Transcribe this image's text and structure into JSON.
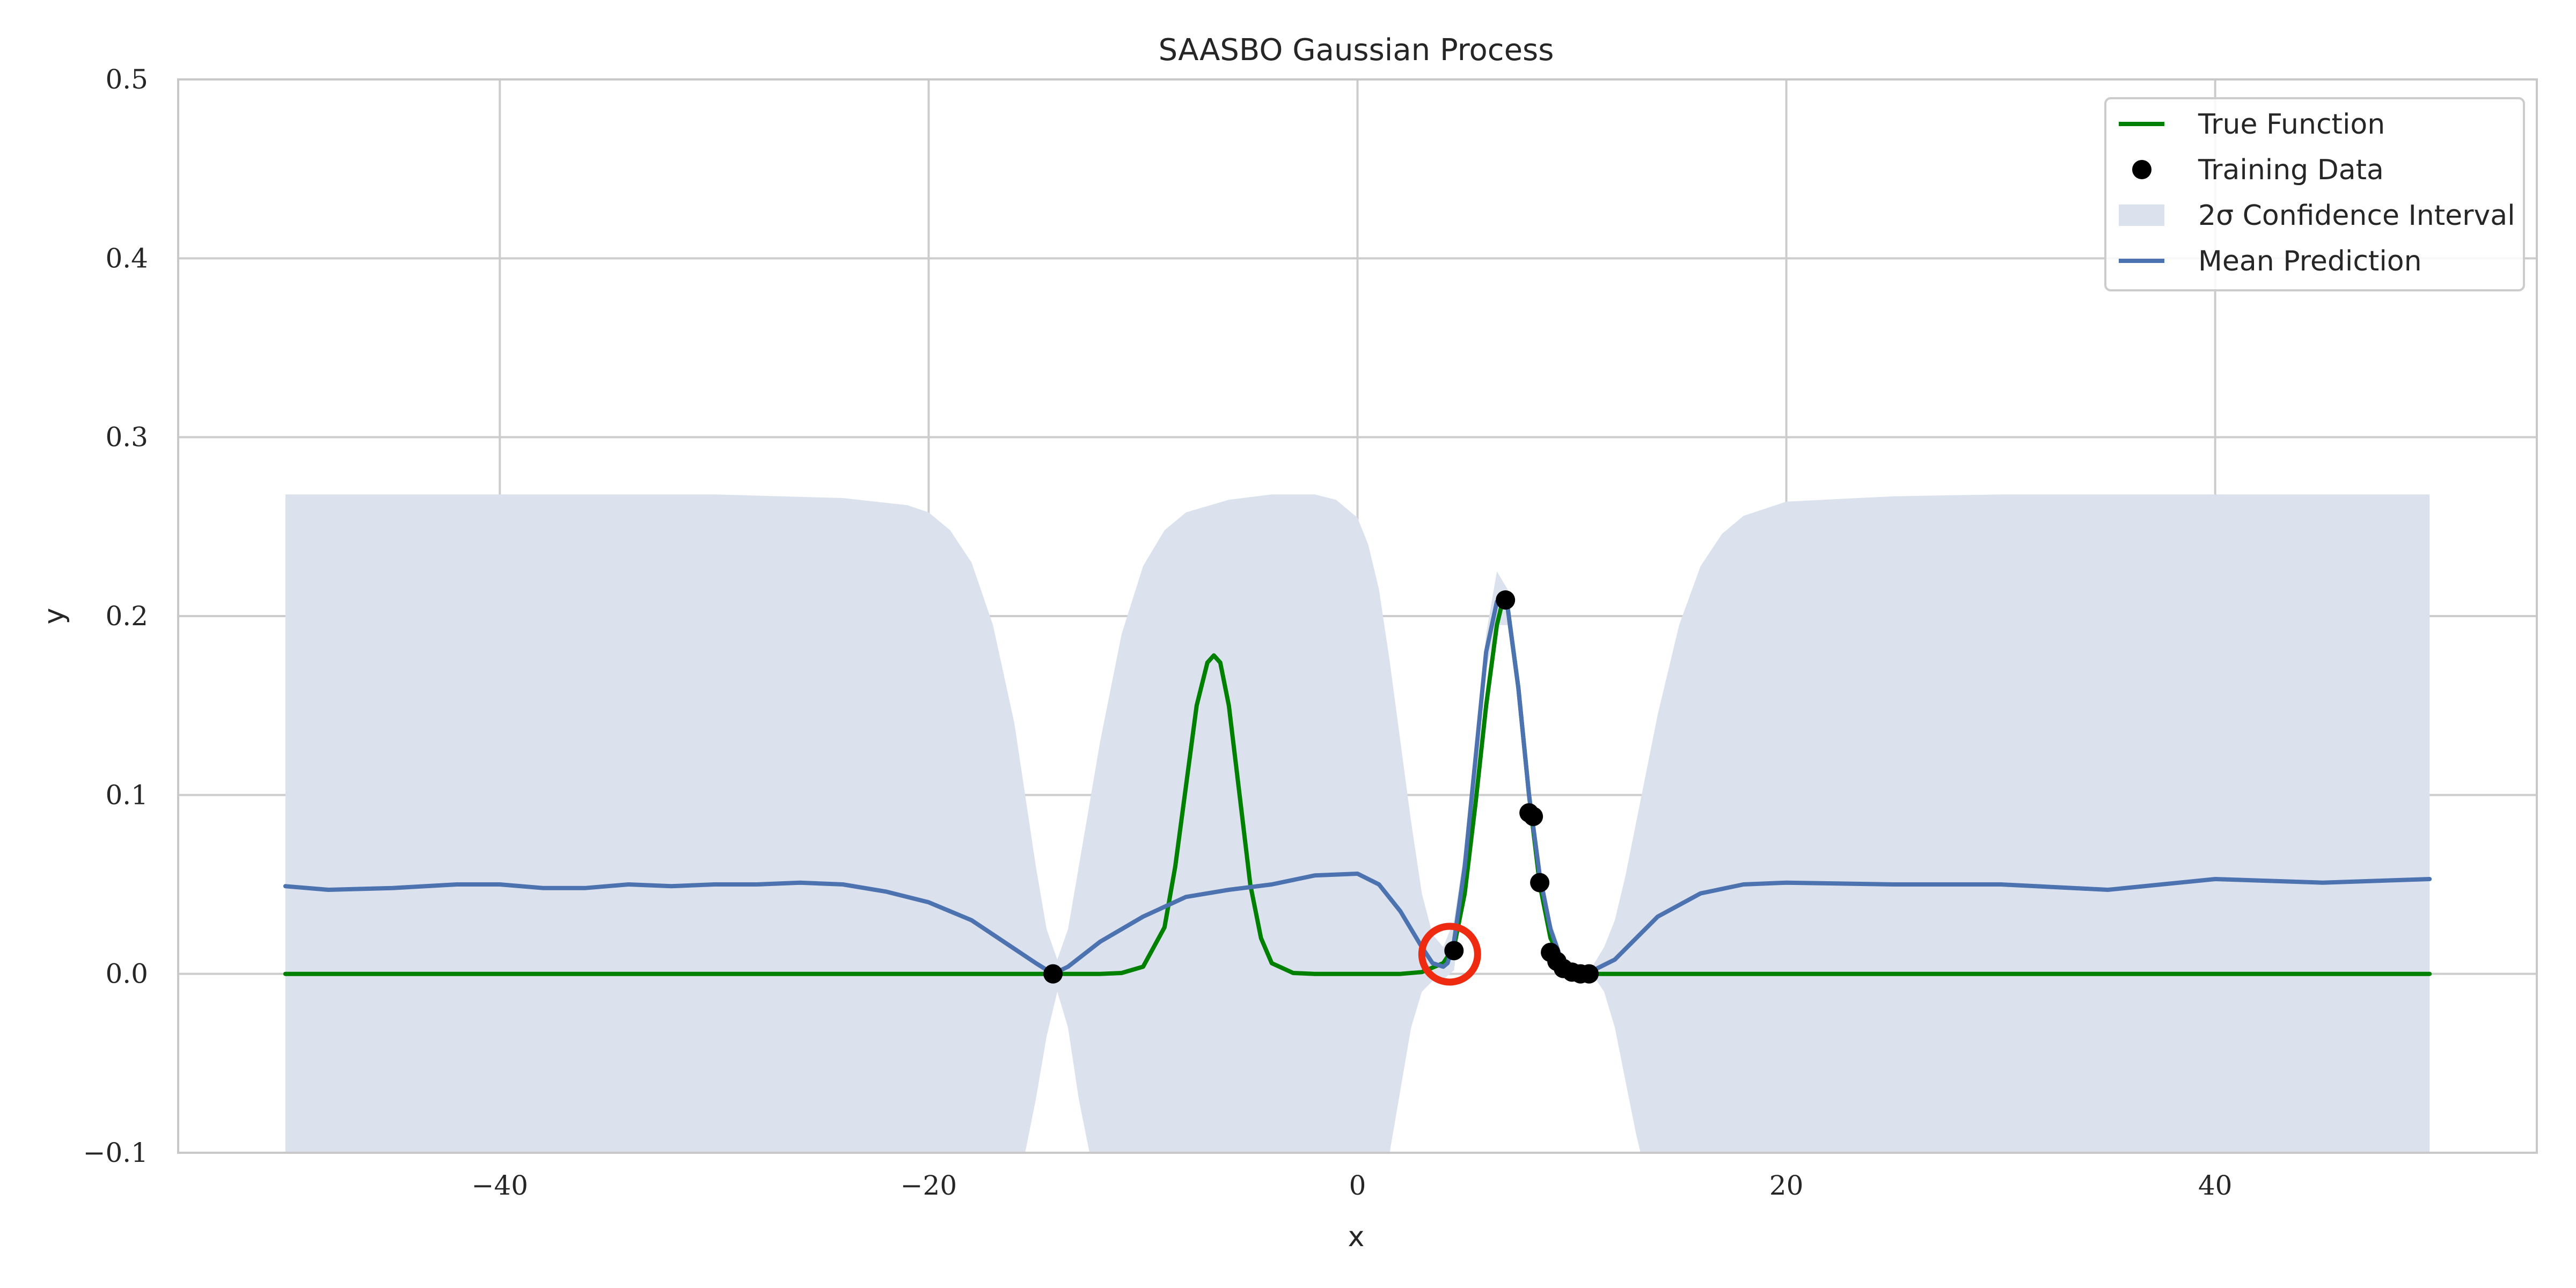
{
  "chart_data": {
    "type": "line",
    "title": "SAASBO Gaussian Process",
    "xlabel": "x",
    "ylabel": "y",
    "xlim": [
      -55,
      55
    ],
    "ylim": [
      -0.1,
      0.5
    ],
    "grid": true,
    "legend_position": "top-right",
    "x_ticks": [
      -40,
      -20,
      0,
      20,
      40
    ],
    "x_tick_labels": [
      "−40",
      "−20",
      "0",
      "20",
      "40"
    ],
    "y_ticks": [
      -0.1,
      0.0,
      0.1,
      0.2,
      0.3,
      0.4,
      0.5
    ],
    "y_tick_labels": [
      "−0.1",
      "0.0",
      "0.1",
      "0.2",
      "0.3",
      "0.4",
      "0.5"
    ],
    "legend": [
      {
        "label": "True Function",
        "kind": "line",
        "color": "#008000"
      },
      {
        "label": "Training Data",
        "kind": "marker",
        "color": "#000000"
      },
      {
        "label": "2σ Confidence Interval",
        "kind": "patch",
        "color": "#dbe2ee"
      },
      {
        "label": "Mean Prediction",
        "kind": "line",
        "color": "#4c72b0"
      }
    ],
    "series": [
      {
        "name": "True Function",
        "color": "#008000",
        "x": [
          -50,
          -20,
          -12,
          -11,
          -10,
          -9,
          -8.5,
          -8,
          -7.5,
          -7,
          -6.7,
          -6.4,
          -6,
          -5.5,
          -5,
          -4.5,
          -4,
          -3,
          -2,
          0,
          2,
          3,
          4,
          4.5,
          5,
          5.5,
          6,
          6.5,
          6.8,
          7,
          7.5,
          8,
          8.5,
          9,
          9.5,
          10,
          10.5,
          11,
          12,
          20,
          50
        ],
        "y": [
          0,
          0,
          0,
          0.0005,
          0.004,
          0.026,
          0.06,
          0.105,
          0.15,
          0.174,
          0.178,
          0.174,
          0.15,
          0.1,
          0.05,
          0.02,
          0.006,
          0.0005,
          0,
          0,
          0,
          0.001,
          0.006,
          0.015,
          0.045,
          0.095,
          0.15,
          0.195,
          0.21,
          0.205,
          0.16,
          0.1,
          0.05,
          0.02,
          0.008,
          0.003,
          0.001,
          0,
          0,
          0,
          0
        ]
      },
      {
        "name": "Mean Prediction",
        "color": "#4c72b0",
        "x": [
          -50,
          -48,
          -45,
          -42,
          -40,
          -38,
          -36,
          -34,
          -32,
          -30,
          -28,
          -26,
          -24,
          -22,
          -20,
          -18,
          -16,
          -15,
          -14.2,
          -13.5,
          -12,
          -10,
          -8,
          -6,
          -4,
          -2,
          0,
          1,
          2,
          3,
          3.5,
          4,
          4.2,
          4.5,
          5,
          5.5,
          6,
          6.5,
          6.8,
          7,
          7.5,
          8,
          8.5,
          9,
          9.5,
          10,
          10.5,
          11,
          12,
          13,
          14,
          16,
          18,
          20,
          25,
          30,
          35,
          40,
          45,
          50
        ],
        "y": [
          0.049,
          0.047,
          0.048,
          0.05,
          0.05,
          0.048,
          0.048,
          0.05,
          0.049,
          0.05,
          0.05,
          0.051,
          0.05,
          0.046,
          0.04,
          0.03,
          0.014,
          0.006,
          0,
          0.004,
          0.018,
          0.032,
          0.043,
          0.047,
          0.05,
          0.055,
          0.056,
          0.05,
          0.035,
          0.015,
          0.006,
          0.004,
          0.006,
          0.018,
          0.06,
          0.12,
          0.18,
          0.208,
          0.212,
          0.205,
          0.16,
          0.1,
          0.055,
          0.025,
          0.008,
          0.002,
          0.001,
          0.002,
          0.008,
          0.02,
          0.032,
          0.045,
          0.05,
          0.051,
          0.05,
          0.05,
          0.047,
          0.053,
          0.051,
          0.053
        ]
      }
    ],
    "confidence_interval": {
      "name": "2σ Confidence Interval",
      "color": "#dbe2ee",
      "x": [
        -50,
        -30,
        -24,
        -21,
        -20,
        -19,
        -18,
        -17,
        -16,
        -15.5,
        -15,
        -14.5,
        -14,
        -13.5,
        -13,
        -12.5,
        -12,
        -11,
        -10,
        -9,
        -8,
        -6,
        -4,
        -2,
        -1,
        0,
        0.5,
        1,
        1.5,
        2,
        2.5,
        3,
        3.5,
        4,
        4.5,
        5,
        5.5,
        6,
        6.5,
        7,
        7.5,
        8,
        8.5,
        9,
        9.5,
        10,
        10.5,
        11,
        11.5,
        12,
        12.5,
        13,
        14,
        15,
        16,
        17,
        18,
        20,
        25,
        30,
        50
      ],
      "upper": [
        0.268,
        0.268,
        0.266,
        0.262,
        0.258,
        0.248,
        0.23,
        0.195,
        0.14,
        0.1,
        0.06,
        0.025,
        0.008,
        0.025,
        0.06,
        0.095,
        0.13,
        0.19,
        0.228,
        0.248,
        0.258,
        0.265,
        0.268,
        0.268,
        0.265,
        0.255,
        0.24,
        0.215,
        0.175,
        0.13,
        0.085,
        0.045,
        0.022,
        0.015,
        0.03,
        0.07,
        0.13,
        0.19,
        0.225,
        0.215,
        0.165,
        0.1,
        0.06,
        0.03,
        0.012,
        0.004,
        0.002,
        0.005,
        0.015,
        0.03,
        0.055,
        0.085,
        0.145,
        0.195,
        0.228,
        0.246,
        0.256,
        0.264,
        0.267,
        0.268,
        0.268
      ],
      "lower": [
        -0.17,
        -0.17,
        -0.168,
        -0.166,
        -0.17,
        -0.175,
        -0.17,
        -0.155,
        -0.125,
        -0.1,
        -0.07,
        -0.035,
        -0.01,
        -0.03,
        -0.07,
        -0.1,
        -0.13,
        -0.16,
        -0.175,
        -0.18,
        -0.18,
        -0.18,
        -0.18,
        -0.175,
        -0.165,
        -0.15,
        -0.14,
        -0.12,
        -0.1,
        -0.065,
        -0.03,
        -0.01,
        -0.004,
        -0.003,
        0.002,
        0.05,
        0.11,
        0.17,
        0.195,
        0.195,
        0.155,
        0.1,
        0.05,
        0.02,
        0.004,
        0,
        0,
        -0.001,
        -0.01,
        -0.03,
        -0.06,
        -0.09,
        -0.14,
        -0.16,
        -0.17,
        -0.17,
        -0.17,
        -0.17,
        -0.17,
        -0.17,
        -0.17
      ]
    },
    "training_data": {
      "name": "Training Data",
      "color": "#000000",
      "x": [
        -14.2,
        4.5,
        6.9,
        8.0,
        8.2,
        8.5,
        9.0,
        9.3,
        9.6,
        10.0,
        10.4,
        10.8
      ],
      "y": [
        0.0,
        0.013,
        0.209,
        0.09,
        0.088,
        0.051,
        0.012,
        0.007,
        0.003,
        0.001,
        0.0,
        0.0
      ]
    },
    "highlight_marker": {
      "shape": "circle",
      "color": "#ee2b10",
      "x": 4.3,
      "y": 0.011
    }
  }
}
